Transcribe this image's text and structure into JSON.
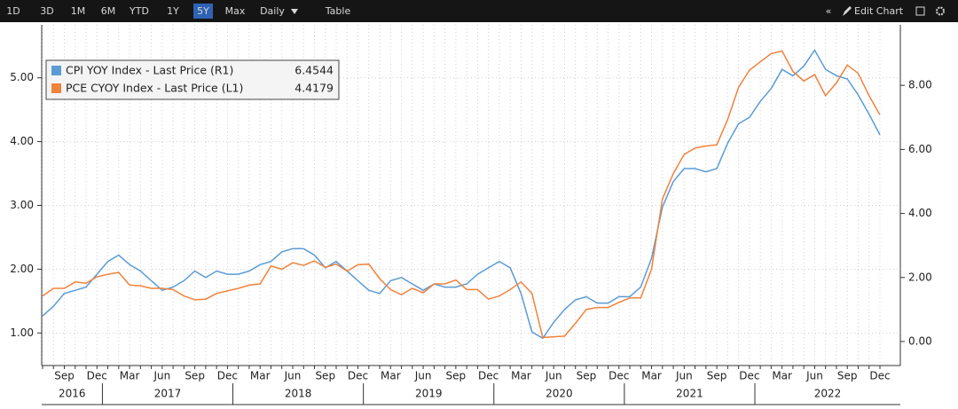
{
  "toolbar": {
    "buttons": [
      "1D",
      "3D",
      "1M",
      "6M",
      "YTD",
      "1Y",
      "5Y",
      "Max",
      "Daily",
      "Table"
    ],
    "active": "5Y",
    "edit": "Edit Chart"
  },
  "chart_data": {
    "type": "line",
    "x": [
      "2016-07",
      "2016-08",
      "2016-09",
      "2016-10",
      "2016-11",
      "2016-12",
      "2017-01",
      "2017-02",
      "2017-03",
      "2017-04",
      "2017-05",
      "2017-06",
      "2017-07",
      "2017-08",
      "2017-09",
      "2017-10",
      "2017-11",
      "2017-12",
      "2018-01",
      "2018-02",
      "2018-03",
      "2018-04",
      "2018-05",
      "2018-06",
      "2018-07",
      "2018-08",
      "2018-09",
      "2018-10",
      "2018-11",
      "2018-12",
      "2019-01",
      "2019-02",
      "2019-03",
      "2019-04",
      "2019-05",
      "2019-06",
      "2019-07",
      "2019-08",
      "2019-09",
      "2019-10",
      "2019-11",
      "2019-12",
      "2020-01",
      "2020-02",
      "2020-03",
      "2020-04",
      "2020-05",
      "2020-06",
      "2020-07",
      "2020-08",
      "2020-09",
      "2020-10",
      "2020-11",
      "2020-12",
      "2021-01",
      "2021-02",
      "2021-03",
      "2021-04",
      "2021-05",
      "2021-06",
      "2021-07",
      "2021-08",
      "2021-09",
      "2021-10",
      "2021-11",
      "2021-12",
      "2022-01",
      "2022-02",
      "2022-03",
      "2022-04",
      "2022-05",
      "2022-06",
      "2022-07",
      "2022-08",
      "2022-09",
      "2022-10",
      "2022-11",
      "2022-12"
    ],
    "xticks": [
      {
        "value": "2016-09",
        "label": "Sep"
      },
      {
        "value": "2016-12",
        "label": "Dec"
      },
      {
        "value": "2017-03",
        "label": "Mar"
      },
      {
        "value": "2017-06",
        "label": "Jun"
      },
      {
        "value": "2017-09",
        "label": "Sep"
      },
      {
        "value": "2017-12",
        "label": "Dec"
      },
      {
        "value": "2018-03",
        "label": "Mar"
      },
      {
        "value": "2018-06",
        "label": "Jun"
      },
      {
        "value": "2018-09",
        "label": "Sep"
      },
      {
        "value": "2018-12",
        "label": "Dec"
      },
      {
        "value": "2019-03",
        "label": "Mar"
      },
      {
        "value": "2019-06",
        "label": "Jun"
      },
      {
        "value": "2019-09",
        "label": "Sep"
      },
      {
        "value": "2019-12",
        "label": "Dec"
      },
      {
        "value": "2020-03",
        "label": "Mar"
      },
      {
        "value": "2020-06",
        "label": "Jun"
      },
      {
        "value": "2020-09",
        "label": "Sep"
      },
      {
        "value": "2020-12",
        "label": "Dec"
      },
      {
        "value": "2021-03",
        "label": "Mar"
      },
      {
        "value": "2021-06",
        "label": "Jun"
      },
      {
        "value": "2021-09",
        "label": "Sep"
      },
      {
        "value": "2021-12",
        "label": "Dec"
      },
      {
        "value": "2022-03",
        "label": "Mar"
      },
      {
        "value": "2022-06",
        "label": "Jun"
      },
      {
        "value": "2022-09",
        "label": "Sep"
      },
      {
        "value": "2022-12",
        "label": "Dec"
      }
    ],
    "year_labels": [
      "2016",
      "2017",
      "2018",
      "2019",
      "2020",
      "2021",
      "2022"
    ],
    "ylim": [
      0.49,
      5.83
    ],
    "yticks": [
      {
        "value": 1,
        "label": "1.00"
      },
      {
        "value": 2,
        "label": "2.00"
      },
      {
        "value": 3,
        "label": "3.00"
      },
      {
        "value": 4,
        "label": "4.00"
      },
      {
        "value": 5,
        "label": "5.00"
      }
    ],
    "y2lim": [
      -0.75,
      9.89
    ],
    "y2ticks": [
      {
        "value": 0,
        "label": "0.00"
      },
      {
        "value": 2,
        "label": "2.00"
      },
      {
        "value": 4,
        "label": "4.00"
      },
      {
        "value": 6,
        "label": "6.00"
      },
      {
        "value": 8,
        "label": "8.00"
      }
    ],
    "grid": true,
    "series": [
      {
        "name": "CPI YOY Index - Last Price (R1)",
        "color": "#5b9bd5",
        "axis": "y2",
        "values": [
          0.8,
          1.1,
          1.5,
          1.6,
          1.7,
          2.1,
          2.5,
          2.7,
          2.4,
          2.2,
          1.9,
          1.6,
          1.7,
          1.9,
          2.2,
          2.0,
          2.2,
          2.1,
          2.1,
          2.2,
          2.4,
          2.5,
          2.8,
          2.9,
          2.9,
          2.7,
          2.3,
          2.5,
          2.2,
          1.9,
          1.6,
          1.5,
          1.9,
          2.0,
          1.8,
          1.6,
          1.8,
          1.7,
          1.7,
          1.8,
          2.1,
          2.3,
          2.5,
          2.3,
          1.5,
          0.3,
          0.1,
          0.6,
          1.0,
          1.3,
          1.4,
          1.2,
          1.2,
          1.4,
          1.4,
          1.7,
          2.6,
          4.2,
          5.0,
          5.4,
          5.4,
          5.3,
          5.4,
          6.2,
          6.8,
          7.0,
          7.5,
          7.9,
          8.5,
          8.3,
          8.6,
          9.1,
          8.5,
          8.3,
          8.2,
          7.7,
          7.1,
          6.4544
        ]
      },
      {
        "name": "PCE CYOY Index - Last Price (L1)",
        "color": "#f0823c",
        "values": [
          1.58,
          1.7,
          1.7,
          1.8,
          1.78,
          1.88,
          1.92,
          1.95,
          1.75,
          1.74,
          1.7,
          1.7,
          1.68,
          1.58,
          1.52,
          1.53,
          1.62,
          1.66,
          1.7,
          1.75,
          1.77,
          2.05,
          2.0,
          2.1,
          2.06,
          2.13,
          2.03,
          2.08,
          1.97,
          2.07,
          2.08,
          1.85,
          1.68,
          1.6,
          1.7,
          1.63,
          1.77,
          1.77,
          1.83,
          1.68,
          1.68,
          1.53,
          1.58,
          1.68,
          1.8,
          1.62,
          0.93,
          0.94,
          0.95,
          1.15,
          1.37,
          1.4,
          1.4,
          1.48,
          1.55,
          1.55,
          2.0,
          3.1,
          3.5,
          3.8,
          3.9,
          3.93,
          3.95,
          4.35,
          4.85,
          5.12,
          5.25,
          5.38,
          5.42,
          5.1,
          4.95,
          5.05,
          4.72,
          4.92,
          5.2,
          5.07,
          4.72,
          4.4179
        ]
      }
    ]
  }
}
